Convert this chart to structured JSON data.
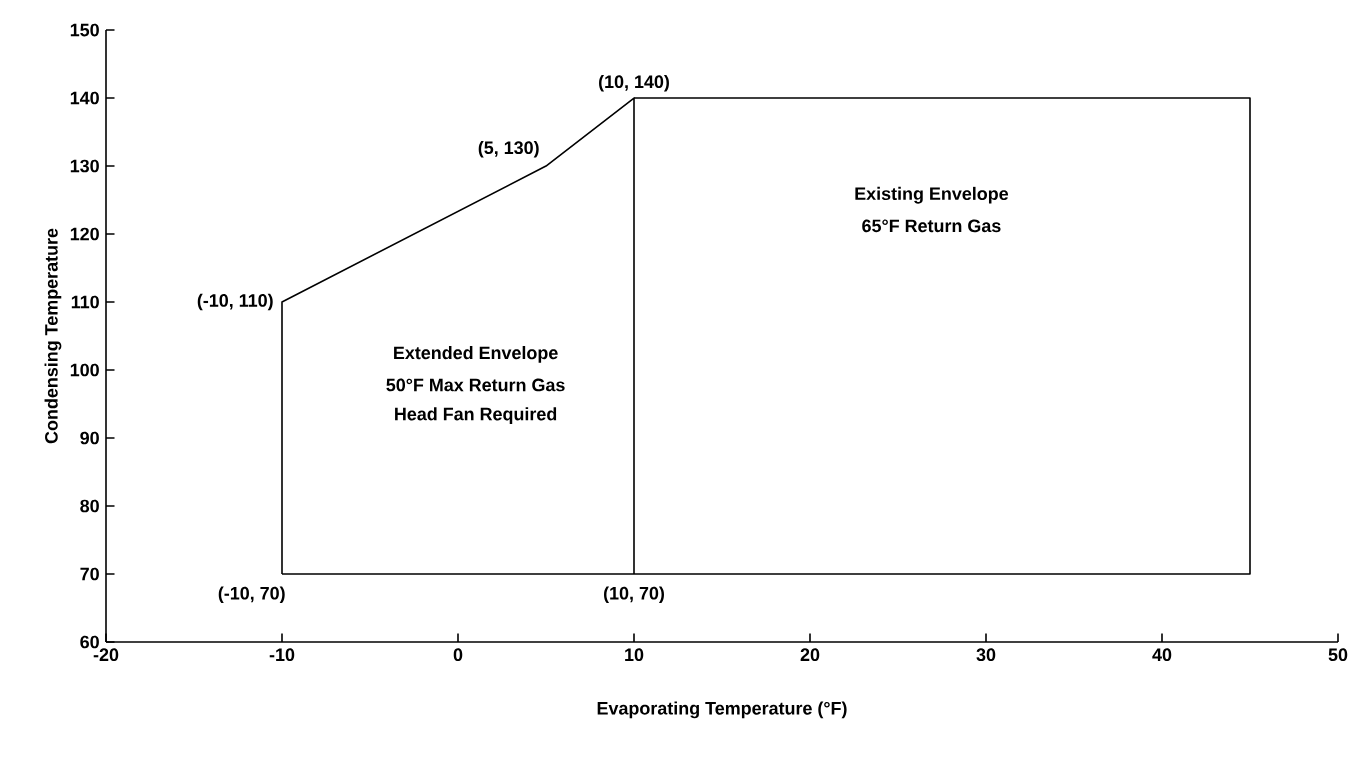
{
  "chart_data": {
    "type": "line",
    "xlabel": "Evaporating Temperature (°F)",
    "ylabel": "Condensing Temperature",
    "series": [
      {
        "color": "#000000",
        "x": [
          -10,
          -10,
          5,
          10,
          10
        ],
        "values": [
          70,
          110,
          130,
          140,
          70
        ]
      },
      {
        "color": "#000000",
        "x": [
          10,
          45,
          45,
          -10
        ],
        "values": [
          140,
          140,
          70,
          70
        ]
      }
    ],
    "xlim": [
      -20,
      50
    ],
    "ylim": [
      60,
      150
    ],
    "xticks": [
      -20,
      -10,
      0,
      10,
      20,
      30,
      40,
      50
    ],
    "yticks": [
      60,
      70,
      80,
      90,
      100,
      110,
      120,
      130,
      140,
      150
    ],
    "marker": "none",
    "line_style": "solid",
    "annotations": [
      {
        "text": "(-10, 110)",
        "x": -10,
        "y": 110
      },
      {
        "text": "(5, 130)",
        "x": 5,
        "y": 130
      },
      {
        "text": "(10, 140)",
        "x": 10,
        "y": 140
      },
      {
        "text": "(-10, 70)",
        "x": -10,
        "y": 70
      },
      {
        "text": "(10, 70)",
        "x": 10,
        "y": 70
      },
      "Existing Envelope",
      "65°F Return Gas",
      "Extended Envelope",
      "50°F Max Return Gas",
      "Head Fan Required"
    ]
  }
}
